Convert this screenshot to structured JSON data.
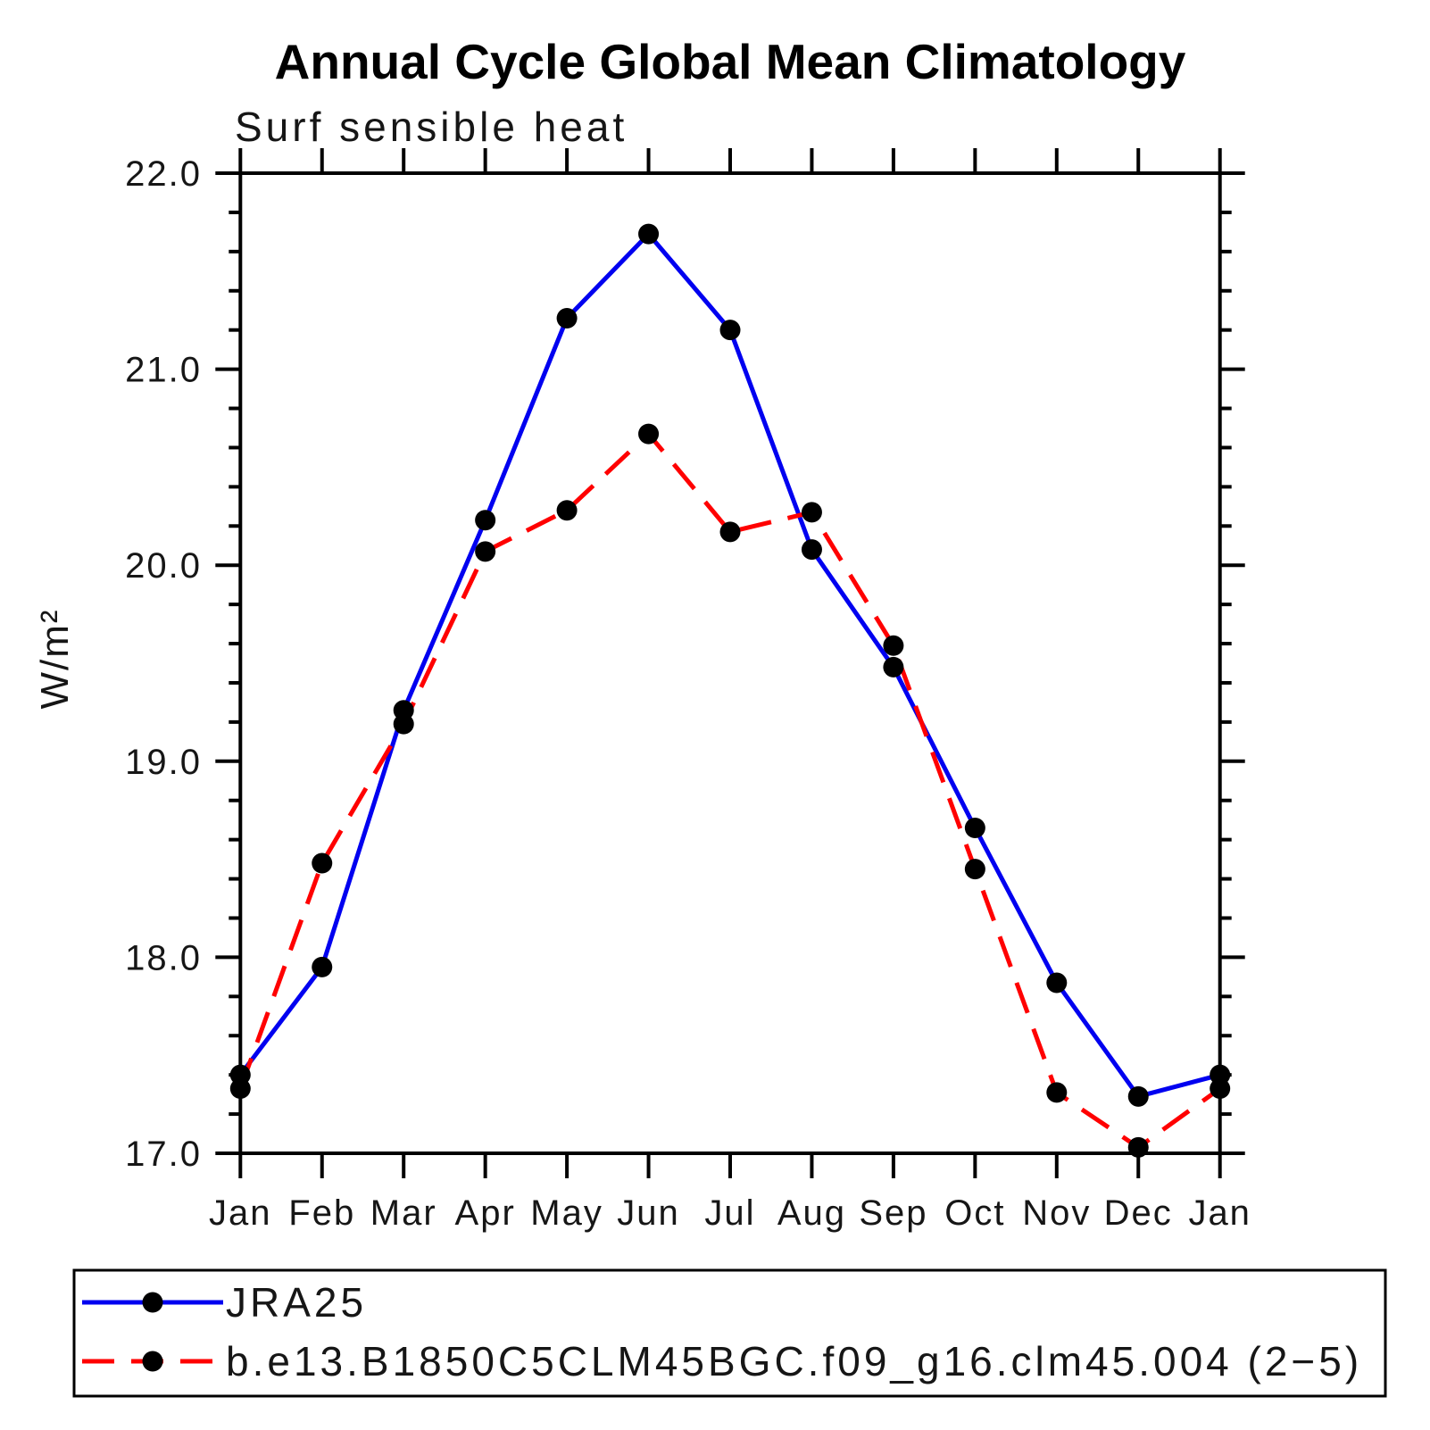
{
  "title": "Annual Cycle Global Mean Climatology",
  "subtitle": "Surf sensible heat",
  "ylabel": "W/m²",
  "chart_data": {
    "type": "line",
    "categories": [
      "Jan",
      "Feb",
      "Mar",
      "Apr",
      "May",
      "Jun",
      "Jul",
      "Aug",
      "Sep",
      "Oct",
      "Nov",
      "Dec",
      "Jan"
    ],
    "series": [
      {
        "name": "JRA25",
        "color": "#0000f0",
        "line_style": "solid",
        "marker": "filled-circle",
        "marker_color": "#000000",
        "values": [
          17.4,
          17.95,
          19.26,
          20.23,
          21.26,
          21.69,
          21.2,
          20.08,
          19.48,
          18.66,
          17.87,
          17.29,
          17.4
        ]
      },
      {
        "name": "b.e13.B1850C5CLM45BGC.f09_g16.clm45.004 (2−5)",
        "color": "#ff0000",
        "line_style": "dashed",
        "marker": "filled-circle",
        "marker_color": "#000000",
        "values": [
          17.33,
          18.48,
          19.19,
          20.07,
          20.28,
          20.67,
          20.17,
          20.27,
          19.59,
          18.45,
          17.31,
          17.03,
          17.33
        ]
      }
    ],
    "ylim": [
      17.0,
      22.0
    ],
    "ytick_labels": [
      "17.0",
      "18.0",
      "19.0",
      "20.0",
      "21.0",
      "22.0"
    ],
    "ytick_values": [
      17.0,
      18.0,
      19.0,
      20.0,
      21.0,
      22.0
    ],
    "minor_tick_interval": 0.2,
    "grid": "off",
    "legend_position": "bottom-left-box"
  }
}
